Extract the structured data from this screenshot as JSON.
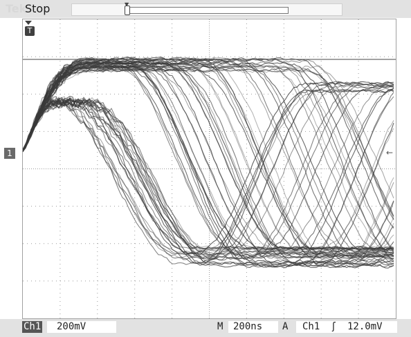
{
  "header": {
    "brand": "Tek",
    "status": "Stop"
  },
  "screen": {
    "channel_marker": "1",
    "trigger_badge": "T",
    "trigger_level_arrow": "←"
  },
  "footer": {
    "channel": "Ch1",
    "volts_per_div": "200mV",
    "time_label": "M",
    "time_per_div": "200ns",
    "trigger_mode": "A",
    "trigger_source": "Ch1",
    "trigger_slope": "ʃ",
    "trigger_level": "12.0mV"
  },
  "colors": {
    "trace": "#3a3a3a",
    "grid": "#9a9a9a",
    "background": "#ffffff"
  }
}
